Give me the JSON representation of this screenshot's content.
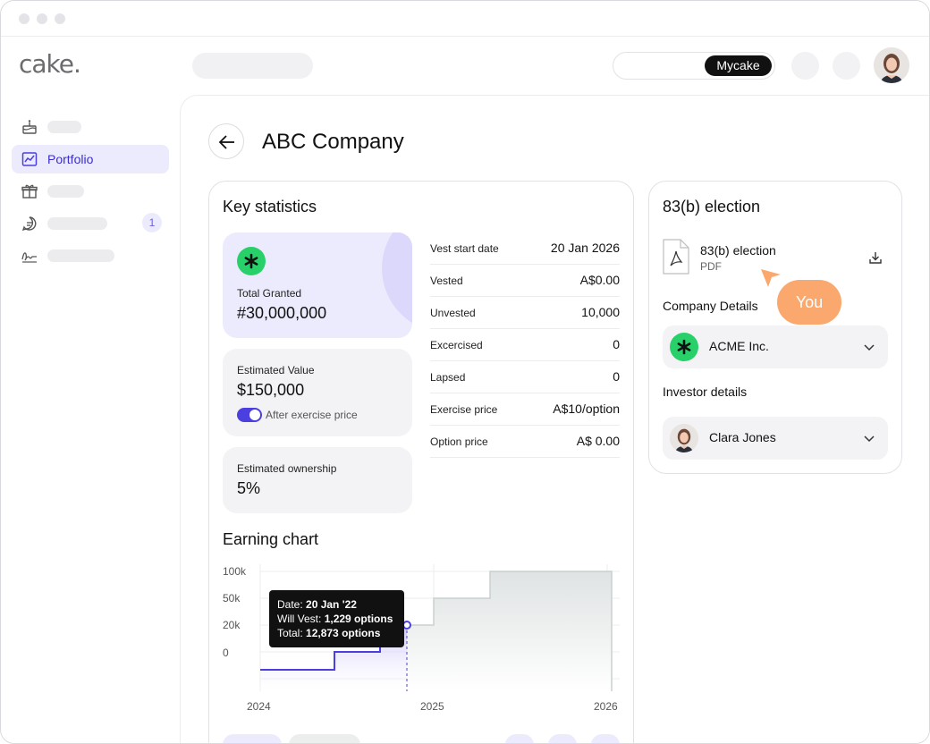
{
  "app": {
    "logo": "cake."
  },
  "topbar": {
    "toggle_active_label": "Mycake"
  },
  "sidebar": {
    "items": [
      {
        "name": "cake-icon"
      },
      {
        "label": "Portfolio",
        "icon": "chart-line-icon"
      },
      {
        "name": "gift-icon"
      },
      {
        "name": "chat-icon",
        "badge": "1"
      },
      {
        "name": "signature-icon"
      }
    ]
  },
  "page": {
    "title": "ABC Company"
  },
  "key_statistics": {
    "title": "Key statistics",
    "total_granted": {
      "label": "Total Granted",
      "value": "#30,000,000"
    },
    "estimated_value": {
      "label": "Estimated Value",
      "value": "$150,000",
      "toggle_label": "After exercise price"
    },
    "estimated_ownership": {
      "label": "Estimated ownership",
      "value": "5%"
    },
    "rows": [
      {
        "k": "Vest start date",
        "v": "20 Jan 2026"
      },
      {
        "k": "Vested",
        "v": "A$0.00"
      },
      {
        "k": "Unvested",
        "v": "10,000"
      },
      {
        "k": "Excercised",
        "v": "0"
      },
      {
        "k": "Lapsed",
        "v": "0"
      },
      {
        "k": "Exercise price",
        "v": "A$10/option"
      },
      {
        "k": "Option price",
        "v": "A$ 0.00"
      }
    ]
  },
  "earning_chart": {
    "title": "Earning chart",
    "tooltip": {
      "date_label": "Date:",
      "date_value": "20 Jan '22",
      "vest_label": "Will Vest:",
      "vest_value": "1,229 options",
      "total_label": "Total:",
      "total_value": "12,873 options"
    },
    "y_ticks": [
      "100k",
      "50k",
      "20k",
      "0"
    ],
    "x_ticks": [
      "2024",
      "2025",
      "2026"
    ]
  },
  "chart_data": {
    "type": "area",
    "series": [
      {
        "values": [
          12000,
          12000,
          20000,
          20000,
          50000,
          50000,
          100000,
          100000
        ]
      }
    ],
    "x": [
      "2024",
      "2024.4",
      "2024.4",
      "2024.7",
      "2024.7",
      "2025.3",
      "2025.3",
      "2026"
    ],
    "ylim": [
      0,
      100000
    ],
    "xlabel": "",
    "ylabel": ""
  },
  "election": {
    "title": "83(b) election",
    "file_name": "83(b) election",
    "file_type": "PDF",
    "company_details_label": "Company Details",
    "company_name": "ACME Inc.",
    "investor_details_label": "Investor details",
    "investor_name": "Clara Jones",
    "cursor_label": "You"
  },
  "colors": {
    "accent": "#4b3fe0",
    "accent_soft": "#ecebfd",
    "green": "#28d06a",
    "orange": "#fba86e"
  }
}
